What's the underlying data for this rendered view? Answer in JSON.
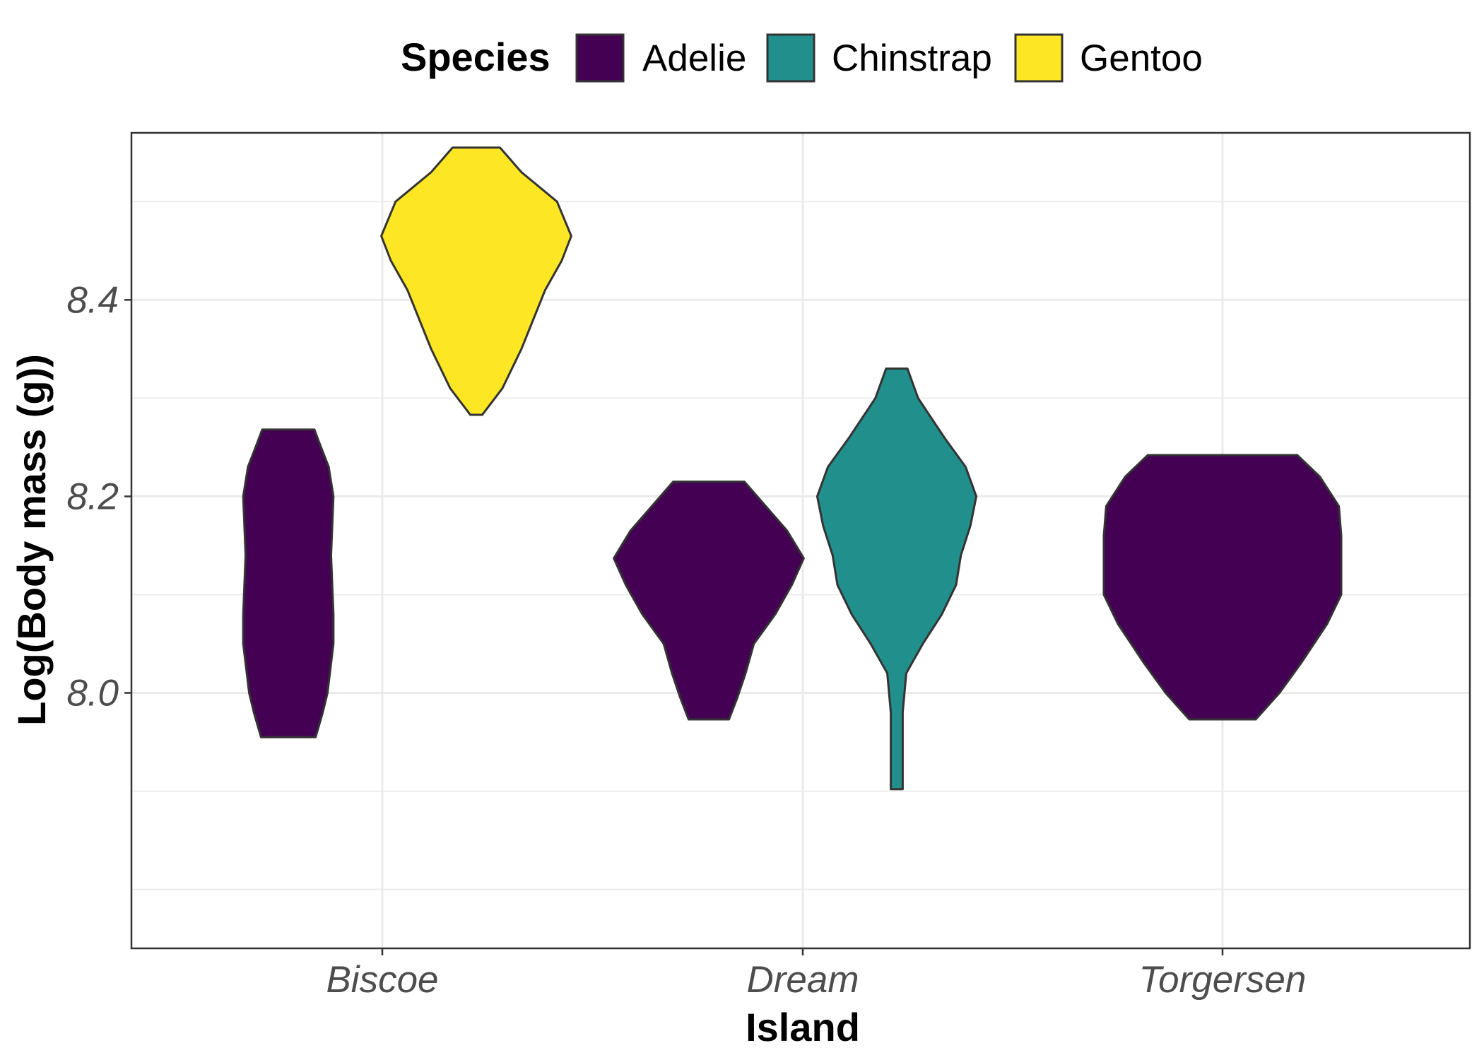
{
  "chart_data": {
    "type": "violin",
    "xlabel": "Island",
    "ylabel": "Log(Body mass (g))",
    "categories": [
      "Biscoe",
      "Dream",
      "Torgersen"
    ],
    "y_ticks": [
      8.0,
      8.2,
      8.4
    ],
    "y_tick_labels": [
      "8.0",
      "8.2",
      "8.4"
    ],
    "ylim": [
      7.74,
      8.57
    ],
    "grid": true,
    "legend": {
      "title": "Species",
      "position": "top",
      "entries": [
        {
          "name": "Adelie",
          "color": "#440154"
        },
        {
          "name": "Chinstrap",
          "color": "#21908C"
        },
        {
          "name": "Gentoo",
          "color": "#FDE725"
        }
      ]
    },
    "outline_color": "#333333",
    "series": [
      {
        "name": "Adelie",
        "island": "Biscoe",
        "color": "#440154",
        "min": 7.955,
        "max": 8.268,
        "profile": [
          [
            8.268,
            0.22
          ],
          [
            8.255,
            0.26
          ],
          [
            8.23,
            0.34
          ],
          [
            8.2,
            0.38
          ],
          [
            8.17,
            0.37
          ],
          [
            8.14,
            0.36
          ],
          [
            8.11,
            0.37
          ],
          [
            8.08,
            0.38
          ],
          [
            8.05,
            0.38
          ],
          [
            8.02,
            0.35
          ],
          [
            8.0,
            0.33
          ],
          [
            7.98,
            0.29
          ],
          [
            7.955,
            0.23
          ]
        ]
      },
      {
        "name": "Gentoo",
        "island": "Biscoe",
        "color": "#FDE725",
        "min": 8.283,
        "max": 8.555,
        "profile": [
          [
            8.555,
            0.2
          ],
          [
            8.53,
            0.38
          ],
          [
            8.5,
            0.68
          ],
          [
            8.465,
            0.8
          ],
          [
            8.44,
            0.72
          ],
          [
            8.41,
            0.58
          ],
          [
            8.38,
            0.48
          ],
          [
            8.35,
            0.38
          ],
          [
            8.31,
            0.22
          ],
          [
            8.283,
            0.05
          ]
        ]
      },
      {
        "name": "Adelie",
        "island": "Dream",
        "color": "#440154",
        "min": 7.973,
        "max": 8.215,
        "profile": [
          [
            8.215,
            0.3
          ],
          [
            8.19,
            0.48
          ],
          [
            8.165,
            0.66
          ],
          [
            8.137,
            0.8
          ],
          [
            8.11,
            0.7
          ],
          [
            8.08,
            0.56
          ],
          [
            8.05,
            0.38
          ],
          [
            8.02,
            0.31
          ],
          [
            7.995,
            0.24
          ],
          [
            7.973,
            0.17
          ]
        ]
      },
      {
        "name": "Chinstrap",
        "island": "Dream",
        "color": "#21908C",
        "min": 7.902,
        "max": 8.33,
        "profile": [
          [
            8.33,
            0.09
          ],
          [
            8.3,
            0.18
          ],
          [
            8.26,
            0.4
          ],
          [
            8.23,
            0.58
          ],
          [
            8.2,
            0.67
          ],
          [
            8.17,
            0.62
          ],
          [
            8.14,
            0.54
          ],
          [
            8.11,
            0.5
          ],
          [
            8.08,
            0.38
          ],
          [
            8.05,
            0.22
          ],
          [
            8.02,
            0.08
          ],
          [
            7.98,
            0.05
          ],
          [
            7.902,
            0.05
          ]
        ]
      },
      {
        "name": "Adelie",
        "island": "Torgersen",
        "color": "#440154",
        "min": 7.973,
        "max": 8.242,
        "profile": [
          [
            8.242,
            0.63
          ],
          [
            8.22,
            0.82
          ],
          [
            8.19,
            0.98
          ],
          [
            8.16,
            1.0
          ],
          [
            8.13,
            1.0
          ],
          [
            8.1,
            1.0
          ],
          [
            8.07,
            0.88
          ],
          [
            8.03,
            0.66
          ],
          [
            8.0,
            0.48
          ],
          [
            7.973,
            0.28
          ]
        ]
      }
    ]
  }
}
